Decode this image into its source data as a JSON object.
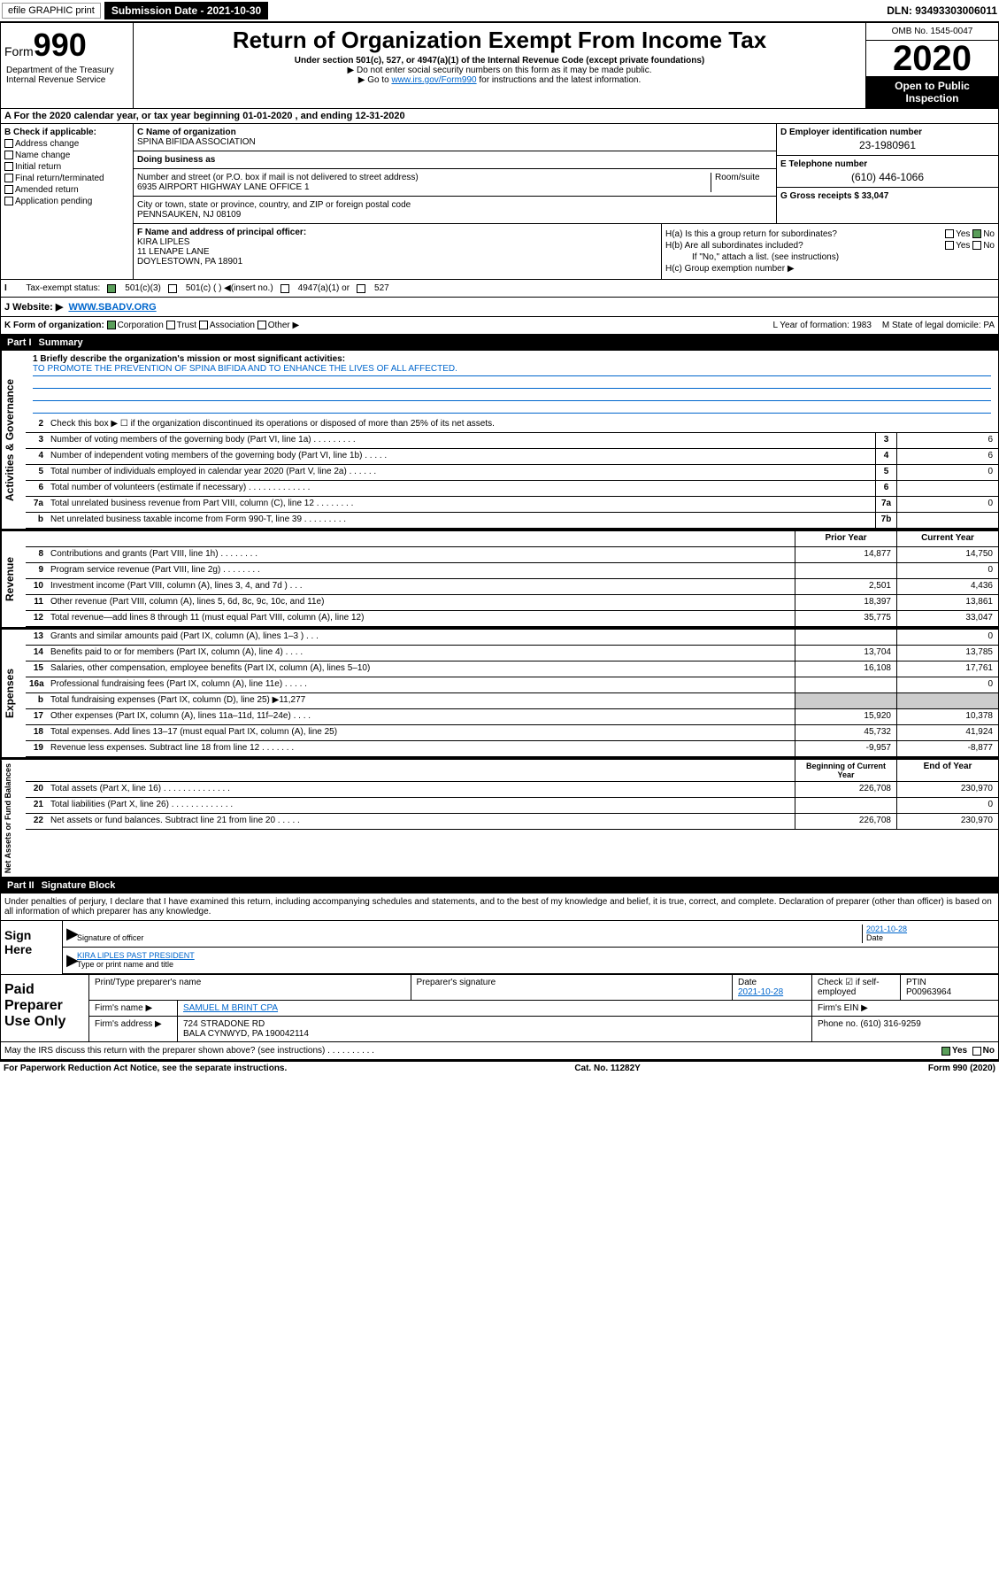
{
  "topbar": {
    "efile": "efile GRAPHIC print",
    "submission_label": "Submission Date - 2021-10-30",
    "dln": "DLN: 93493303006011"
  },
  "header": {
    "form_label": "Form",
    "form_num": "990",
    "title": "Return of Organization Exempt From Income Tax",
    "subtitle": "Under section 501(c), 527, or 4947(a)(1) of the Internal Revenue Code (except private foundations)",
    "note1": "▶ Do not enter social security numbers on this form as it may be made public.",
    "note2_pre": "▶ Go to ",
    "note2_link": "www.irs.gov/Form990",
    "note2_post": " for instructions and the latest information.",
    "omb": "OMB No. 1545-0047",
    "year": "2020",
    "open": "Open to Public Inspection",
    "dept": "Department of the Treasury Internal Revenue Service"
  },
  "period": "For the 2020 calendar year, or tax year beginning 01-01-2020    , and ending 12-31-2020",
  "box_b": {
    "label": "B Check if applicable:",
    "items": [
      "Address change",
      "Name change",
      "Initial return",
      "Final return/terminated",
      "Amended return",
      "Application pending"
    ]
  },
  "box_c": {
    "name_label": "C Name of organization",
    "name": "SPINA BIFIDA ASSOCIATION",
    "dba_label": "Doing business as",
    "addr_label": "Number and street (or P.O. box if mail is not delivered to street address)",
    "room_label": "Room/suite",
    "addr": "6935 AIRPORT HIGHWAY LANE OFFICE 1",
    "city_label": "City or town, state or province, country, and ZIP or foreign postal code",
    "city": "PENNSAUKEN, NJ  08109"
  },
  "box_d": {
    "label": "D Employer identification number",
    "val": "23-1980961"
  },
  "box_e": {
    "label": "E Telephone number",
    "val": "(610) 446-1066"
  },
  "box_g": {
    "label": "G Gross receipts $ 33,047"
  },
  "box_f": {
    "label": "F  Name and address of principal officer:",
    "name": "KIRA LIPLES",
    "addr1": "11 LENAPE LANE",
    "addr2": "DOYLESTOWN, PA  18901"
  },
  "box_h": {
    "ha": "H(a)  Is this a group return for subordinates?",
    "hb": "H(b)  Are all subordinates included?",
    "hb_note": "If \"No,\" attach a list. (see instructions)",
    "hc": "H(c)  Group exemption number ▶",
    "yes": "Yes",
    "no": "No"
  },
  "tax_status": {
    "label": "Tax-exempt status:",
    "opts": [
      "501(c)(3)",
      "501(c) (  ) ◀(insert no.)",
      "4947(a)(1) or",
      "527"
    ]
  },
  "box_i": {
    "label": "I   ",
    "text": "",
    "checked": "501(c)(3)"
  },
  "box_j": {
    "label": "J   Website: ▶",
    "val": "WWW.SBADV.ORG"
  },
  "box_k": {
    "label": "K Form of organization:",
    "opts": [
      "Corporation",
      "Trust",
      "Association",
      "Other ▶"
    ],
    "l_label": "L Year of formation: 1983",
    "m_label": "M State of legal domicile: PA"
  },
  "part1": {
    "label": "Part I",
    "title": "Summary"
  },
  "mission": {
    "label": "1  Briefly describe the organization's mission or most significant activities:",
    "text": "TO PROMOTE THE PREVENTION OF SPINA BIFIDA AND TO ENHANCE THE LIVES OF ALL AFFECTED."
  },
  "gov_rows": [
    {
      "n": "2",
      "d": "Check this box ▶ ☐  if the organization discontinued its operations or disposed of more than 25% of its net assets."
    },
    {
      "n": "3",
      "d": "Number of voting members of the governing body (Part VI, line 1a)  .    .    .    .    .    .    .    .    .",
      "box": "3",
      "v": "6"
    },
    {
      "n": "4",
      "d": "Number of independent voting members of the governing body (Part VI, line 1b)  .    .    .    .    .",
      "box": "4",
      "v": "6"
    },
    {
      "n": "5",
      "d": "Total number of individuals employed in calendar year 2020 (Part V, line 2a)  .    .    .    .    .    .",
      "box": "5",
      "v": "0"
    },
    {
      "n": "6",
      "d": "Total number of volunteers (estimate if necessary)  .    .    .    .    .    .    .    .    .    .    .    .    .",
      "box": "6",
      "v": ""
    },
    {
      "n": "7a",
      "d": "Total unrelated business revenue from Part VIII, column (C), line 12  .    .    .    .    .    .    .    .",
      "box": "7a",
      "v": "0"
    },
    {
      "n": "b",
      "d": "Net unrelated business taxable income from Form 990-T, line 39  .    .    .    .    .    .    .    .    .",
      "box": "7b",
      "v": ""
    }
  ],
  "rev_hdr": {
    "prior": "Prior Year",
    "curr": "Current Year"
  },
  "rev_rows": [
    {
      "n": "8",
      "d": "Contributions and grants (Part VIII, line 1h)  .    .    .    .    .    .    .    .",
      "p": "14,877",
      "c": "14,750"
    },
    {
      "n": "9",
      "d": "Program service revenue (Part VIII, line 2g)  .    .    .    .    .    .    .    .",
      "p": "",
      "c": "0"
    },
    {
      "n": "10",
      "d": "Investment income (Part VIII, column (A), lines 3, 4, and 7d )  .    .    .",
      "p": "2,501",
      "c": "4,436"
    },
    {
      "n": "11",
      "d": "Other revenue (Part VIII, column (A), lines 5, 6d, 8c, 9c, 10c, and 11e)",
      "p": "18,397",
      "c": "13,861"
    },
    {
      "n": "12",
      "d": "Total revenue—add lines 8 through 11 (must equal Part VIII, column (A), line 12)",
      "p": "35,775",
      "c": "33,047"
    }
  ],
  "exp_rows": [
    {
      "n": "13",
      "d": "Grants and similar amounts paid (Part IX, column (A), lines 1–3 ) .    .    .",
      "p": "",
      "c": "0"
    },
    {
      "n": "14",
      "d": "Benefits paid to or for members (Part IX, column (A), line 4)  .    .    .    .",
      "p": "13,704",
      "c": "13,785"
    },
    {
      "n": "15",
      "d": "Salaries, other compensation, employee benefits (Part IX, column (A), lines 5–10)",
      "p": "16,108",
      "c": "17,761"
    },
    {
      "n": "16a",
      "d": "Professional fundraising fees (Part IX, column (A), line 11e)  .    .    .    .    .",
      "p": "",
      "c": "0"
    },
    {
      "n": "b",
      "d": "Total fundraising expenses (Part IX, column (D), line 25) ▶11,277",
      "p": null,
      "c": null
    },
    {
      "n": "17",
      "d": "Other expenses (Part IX, column (A), lines 11a–11d, 11f–24e) .    .    .    .",
      "p": "15,920",
      "c": "10,378"
    },
    {
      "n": "18",
      "d": "Total expenses. Add lines 13–17 (must equal Part IX, column (A), line 25)",
      "p": "45,732",
      "c": "41,924"
    },
    {
      "n": "19",
      "d": "Revenue less expenses. Subtract line 18 from line 12 .    .    .    .    .    .    .",
      "p": "-9,957",
      "c": "-8,877"
    }
  ],
  "na_hdr": {
    "prior": "Beginning of Current Year",
    "curr": "End of Year"
  },
  "na_rows": [
    {
      "n": "20",
      "d": "Total assets (Part X, line 16) .    .    .    .    .    .    .    .    .    .    .    .    .    .",
      "p": "226,708",
      "c": "230,970"
    },
    {
      "n": "21",
      "d": "Total liabilities (Part X, line 26) .    .    .    .    .    .    .    .    .    .    .    .    .",
      "p": "",
      "c": "0"
    },
    {
      "n": "22",
      "d": "Net assets or fund balances. Subtract line 21 from line 20 .    .    .    .    .",
      "p": "226,708",
      "c": "230,970"
    }
  ],
  "vtabs": {
    "gov": "Activities & Governance",
    "rev": "Revenue",
    "exp": "Expenses",
    "na": "Net Assets or Fund Balances"
  },
  "part2": {
    "label": "Part II",
    "title": "Signature Block"
  },
  "sig": {
    "intro": "Under penalties of perjury, I declare that I have examined this return, including accompanying schedules and statements, and to the best of my knowledge and belief, it is true, correct, and complete. Declaration of preparer (other than officer) is based on all information of which preparer has any knowledge.",
    "sign_here": "Sign Here",
    "sig_officer": "Signature of officer",
    "date": "2021-10-28",
    "date_lbl": "Date",
    "name": "KIRA LIPLES  PAST PRESIDENT",
    "name_lbl": "Type or print name and title"
  },
  "paid": {
    "label": "Paid Preparer Use Only",
    "h1": "Print/Type preparer's name",
    "h2": "Preparer's signature",
    "h3": "Date",
    "h3v": "2021-10-28",
    "h4": "Check ☑ if self-employed",
    "h5": "PTIN",
    "h5v": "P00963964",
    "firm_name_lbl": "Firm's name    ▶",
    "firm_name": "SAMUEL M BRINT CPA",
    "firm_ein_lbl": "Firm's EIN ▶",
    "firm_addr_lbl": "Firm's address ▶",
    "firm_addr1": "724 STRADONE RD",
    "firm_addr2": "BALA CYNWYD, PA  190042114",
    "phone_lbl": "Phone no. (610) 316-9259"
  },
  "discuss": "May the IRS discuss this return with the preparer shown above? (see instructions)   .    .    .    .    .    .    .    .    .    .",
  "footer": {
    "left": "For Paperwork Reduction Act Notice, see the separate instructions.",
    "mid": "Cat. No. 11282Y",
    "right": "Form 990 (2020)"
  }
}
